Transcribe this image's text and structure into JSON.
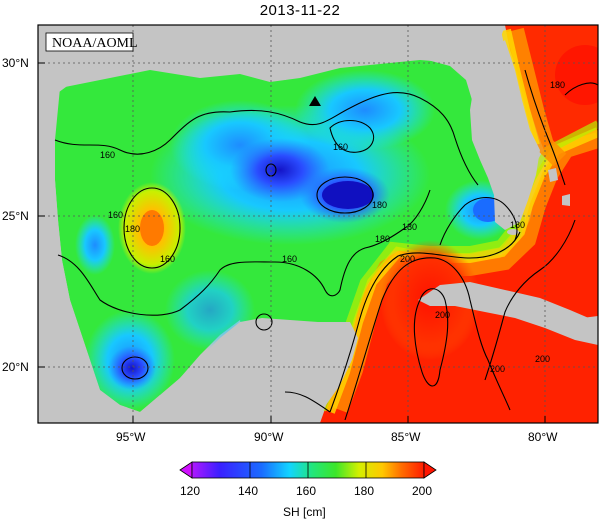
{
  "title": "2013-11-22",
  "credit": "NOAA/AOML",
  "marker": "triangle-marker",
  "lat_labels": [
    "30°N",
    "25°N",
    "20°N"
  ],
  "lon_labels": [
    "95°W",
    "90°W",
    "85°W",
    "80°W"
  ],
  "contour_labels": [
    "160",
    "160",
    "160",
    "160",
    "160",
    "180",
    "180",
    "180",
    "180",
    "180",
    "180",
    "200",
    "200",
    "200",
    "200"
  ],
  "colorbar": {
    "ticks": [
      "120",
      "140",
      "160",
      "180",
      "200"
    ],
    "label": "SH [cm]",
    "colors": [
      "#ff00ff",
      "#7a3cff",
      "#1b1bff",
      "#1e7bff",
      "#12d2ff",
      "#1fe0a0",
      "#2ee83a",
      "#c8f000",
      "#ffd400",
      "#ff8a00",
      "#ff3c00",
      "#ff1a00"
    ]
  }
}
